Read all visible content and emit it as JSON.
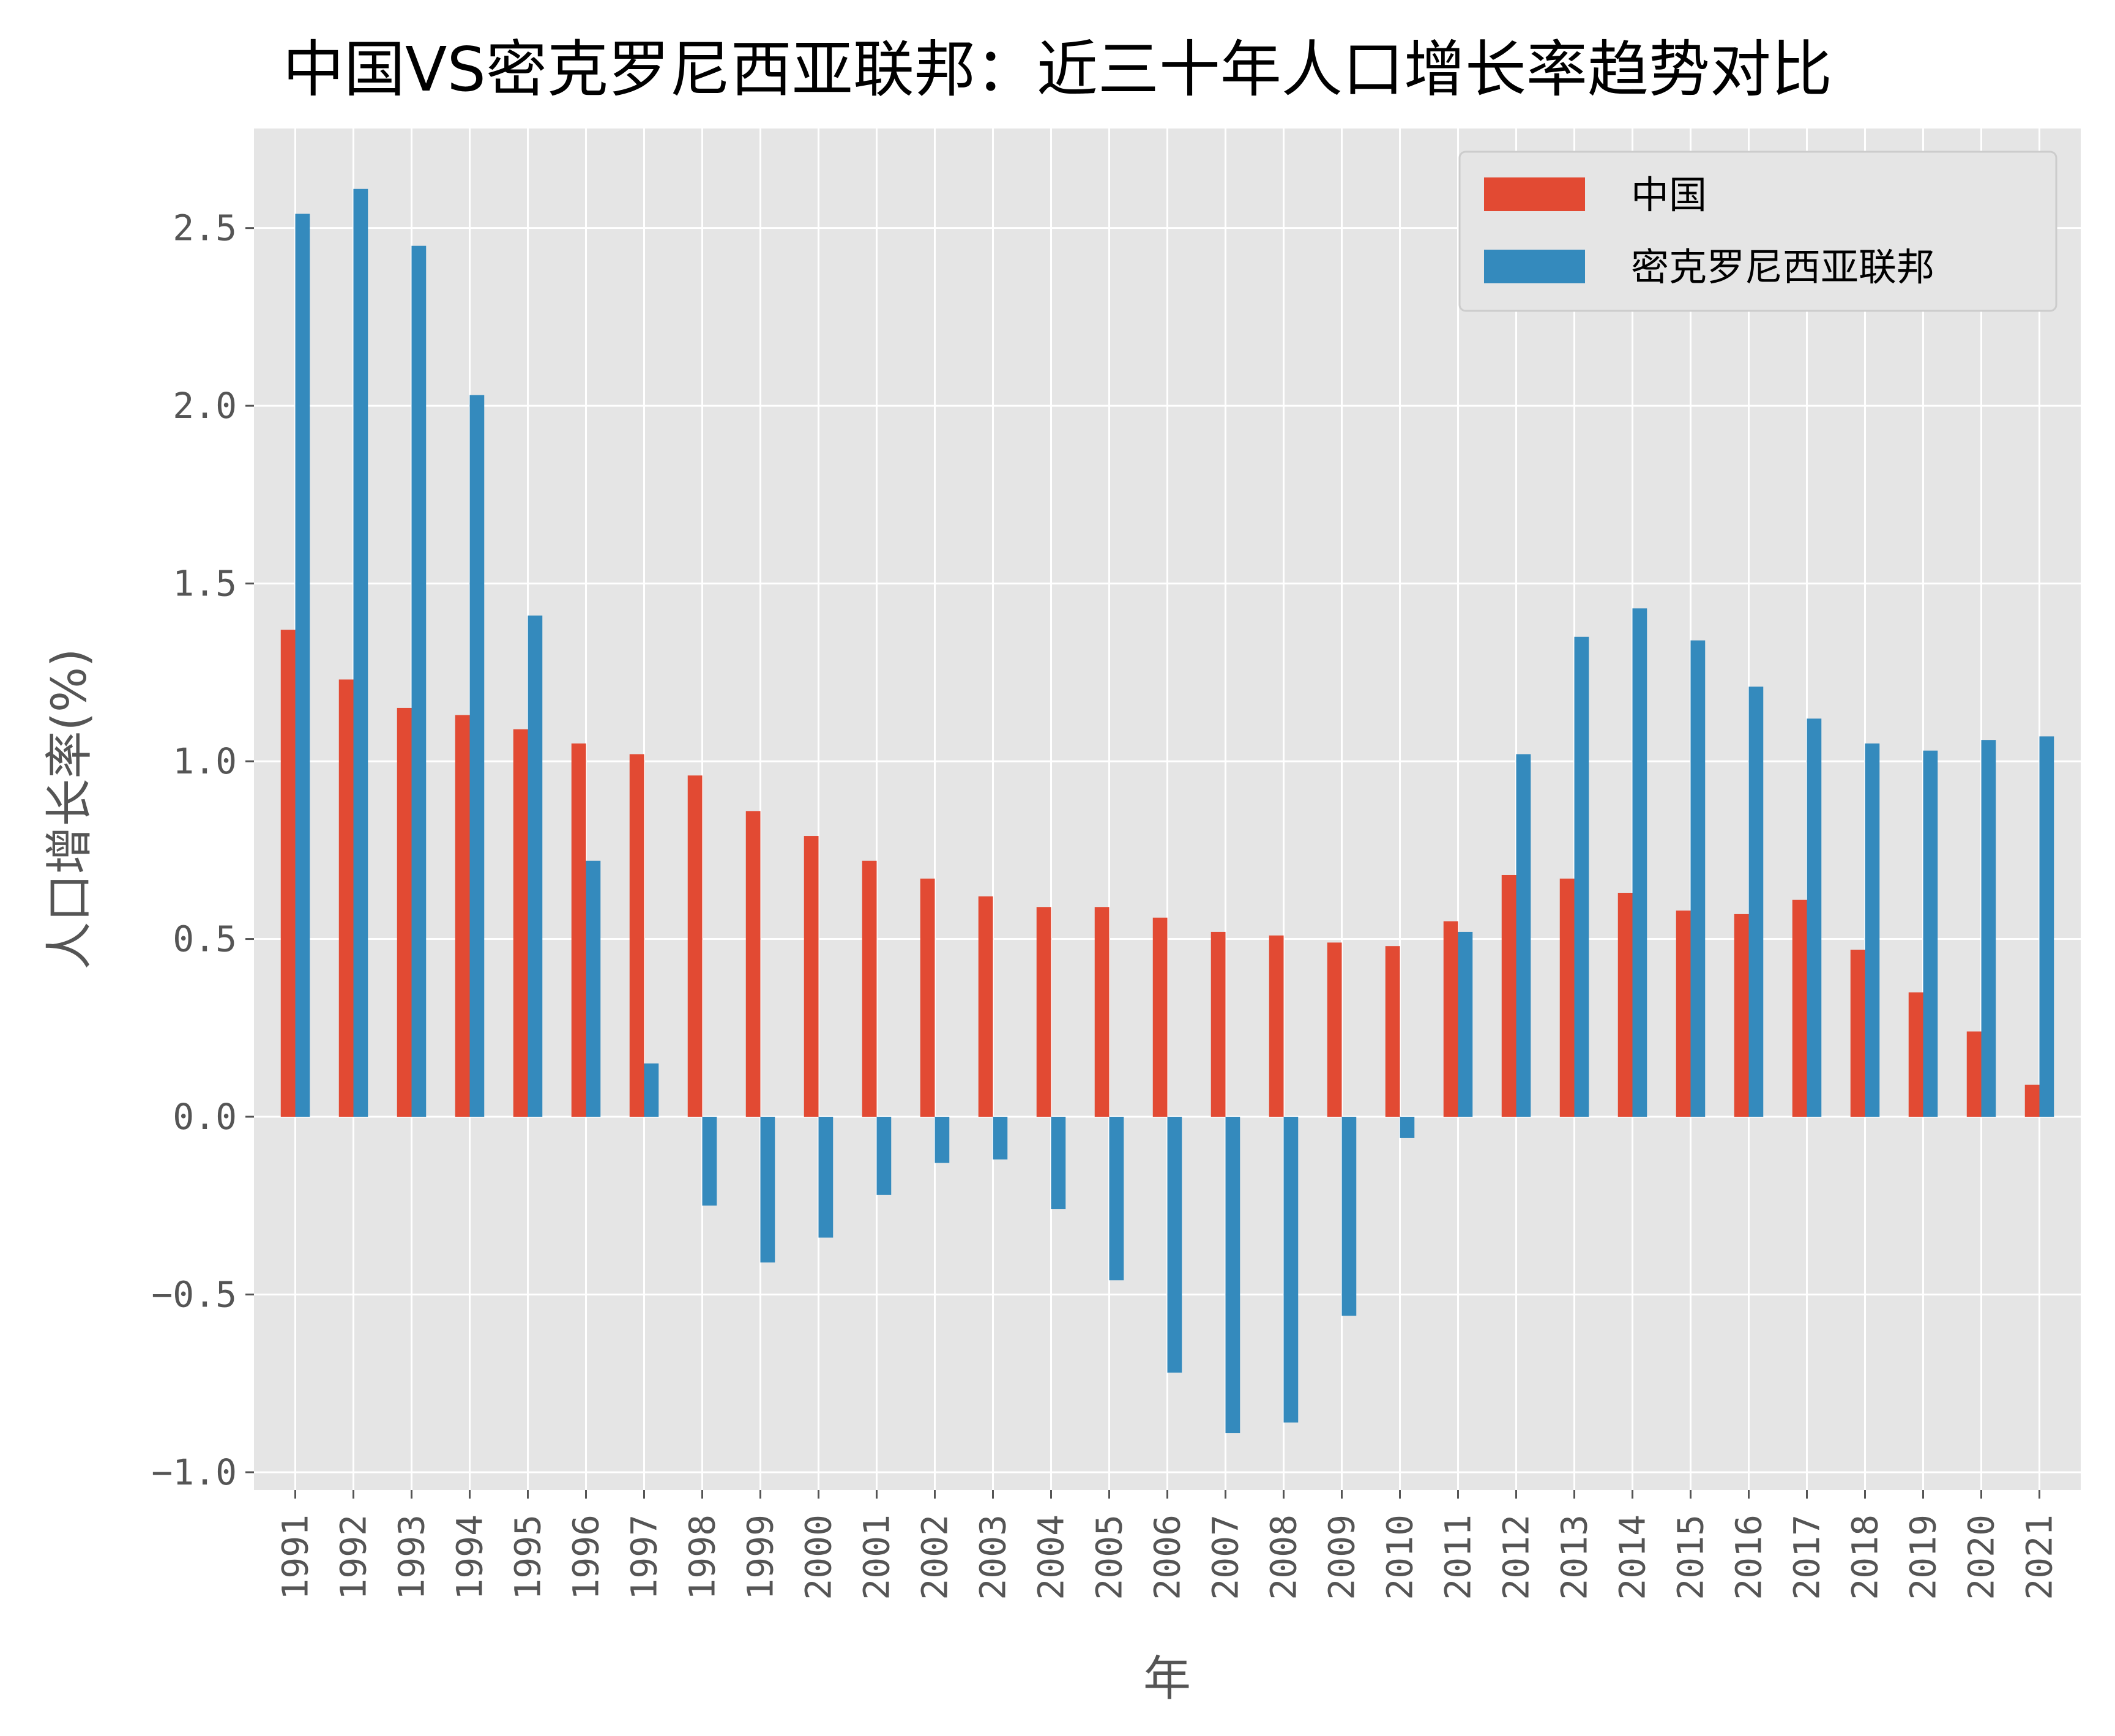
{
  "chart_data": {
    "type": "bar",
    "title": "中国VS密克罗尼西亚联邦：近三十年人口增长率趋势对比",
    "xlabel": "年",
    "ylabel": "人口增长率(%)",
    "ylim": [
      -1.05,
      2.78
    ],
    "yticks": [
      -1.0,
      -0.5,
      0.0,
      0.5,
      1.0,
      1.5,
      2.0,
      2.5
    ],
    "ytick_labels": [
      "−1.0",
      "−0.5",
      "0.0",
      "0.5",
      "1.0",
      "1.5",
      "2.0",
      "2.5"
    ],
    "grid": true,
    "legend_position": "top-right",
    "categories": [
      "1991",
      "1992",
      "1993",
      "1994",
      "1995",
      "1996",
      "1997",
      "1998",
      "1999",
      "2000",
      "2001",
      "2002",
      "2003",
      "2004",
      "2005",
      "2006",
      "2007",
      "2008",
      "2009",
      "2010",
      "2011",
      "2012",
      "2013",
      "2014",
      "2015",
      "2016",
      "2017",
      "2018",
      "2019",
      "2020",
      "2021"
    ],
    "series": [
      {
        "name": "中国",
        "color": "#E24A33",
        "values": [
          1.37,
          1.23,
          1.15,
          1.13,
          1.09,
          1.05,
          1.02,
          0.96,
          0.86,
          0.79,
          0.72,
          0.67,
          0.62,
          0.59,
          0.59,
          0.56,
          0.52,
          0.51,
          0.49,
          0.48,
          0.55,
          0.68,
          0.67,
          0.63,
          0.58,
          0.57,
          0.61,
          0.47,
          0.35,
          0.24,
          0.09
        ]
      },
      {
        "name": "密克罗尼西亚联邦",
        "color": "#348ABD",
        "values": [
          2.54,
          2.61,
          2.45,
          2.03,
          1.41,
          0.72,
          0.15,
          -0.25,
          -0.41,
          -0.34,
          -0.22,
          -0.13,
          -0.12,
          -0.26,
          -0.46,
          -0.72,
          -0.89,
          -0.86,
          -0.56,
          -0.06,
          0.52,
          1.02,
          1.35,
          1.43,
          1.34,
          1.21,
          1.12,
          1.05,
          1.03,
          1.06,
          1.07
        ]
      }
    ]
  },
  "style": {
    "axes_background": "#E5E5E5",
    "grid_color": "#FFFFFF",
    "tick_color": "#555555"
  }
}
